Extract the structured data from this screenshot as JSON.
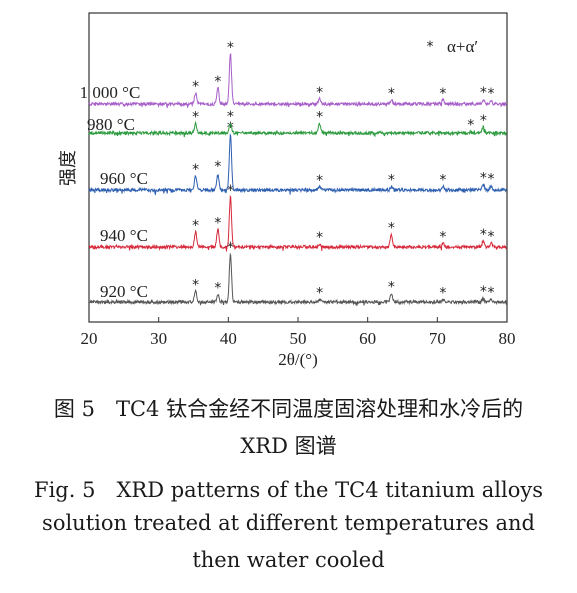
{
  "chart_data": {
    "type": "line",
    "xlabel": "2θ/(°)",
    "ylabel": "强度",
    "xlim": [
      20,
      80
    ],
    "xticks": [
      20,
      30,
      40,
      50,
      60,
      70,
      80
    ],
    "legend": {
      "symbol": "*",
      "label": "α+α′",
      "placement": "top-right"
    },
    "grid": false,
    "series": [
      {
        "name": "920 °C",
        "color": "#555555",
        "peaks": [
          {
            "x": 35.3,
            "h": 0.22,
            "star": true
          },
          {
            "x": 38.5,
            "h": 0.16,
            "star": true
          },
          {
            "x": 40.3,
            "h": 1.0,
            "star": true
          },
          {
            "x": 53.1,
            "h": 0.05,
            "star": true
          },
          {
            "x": 63.4,
            "h": 0.18,
            "star": true
          },
          {
            "x": 70.8,
            "h": 0.05,
            "star": true
          },
          {
            "x": 76.6,
            "h": 0.08,
            "star": true
          },
          {
            "x": 77.7,
            "h": 0.06,
            "star": true
          }
        ]
      },
      {
        "name": "940 °C",
        "color": "#d62a3c",
        "peaks": [
          {
            "x": 35.3,
            "h": 0.3,
            "star": true
          },
          {
            "x": 38.5,
            "h": 0.35,
            "star": true
          },
          {
            "x": 40.3,
            "h": 1.0,
            "star": true
          },
          {
            "x": 53.1,
            "h": 0.06,
            "star": true
          },
          {
            "x": 63.4,
            "h": 0.25,
            "star": true
          },
          {
            "x": 70.8,
            "h": 0.07,
            "star": true
          },
          {
            "x": 76.6,
            "h": 0.12,
            "star": true
          },
          {
            "x": 77.7,
            "h": 0.08,
            "star": true
          }
        ]
      },
      {
        "name": "960 °C",
        "color": "#2e5fb0",
        "peaks": [
          {
            "x": 35.3,
            "h": 0.25,
            "star": true
          },
          {
            "x": 38.5,
            "h": 0.3,
            "star": true
          },
          {
            "x": 40.3,
            "h": 1.0,
            "star": true
          },
          {
            "x": 53.1,
            "h": 0.05,
            "star": true
          },
          {
            "x": 63.4,
            "h": 0.06,
            "star": true
          },
          {
            "x": 70.8,
            "h": 0.06,
            "star": true
          },
          {
            "x": 76.6,
            "h": 0.1,
            "star": true
          },
          {
            "x": 77.7,
            "h": 0.08,
            "star": true
          }
        ]
      },
      {
        "name": "980 °C",
        "color": "#2c9a3e",
        "peaks": [
          {
            "x": 35.3,
            "h": 0.55,
            "star": true
          },
          {
            "x": 40.3,
            "h": 0.6,
            "star": true
          },
          {
            "x": 53.1,
            "h": 0.55,
            "star": true
          },
          {
            "x": 74.8,
            "h": 0.08,
            "star": true
          },
          {
            "x": 76.6,
            "h": 0.35,
            "star": true
          }
        ]
      },
      {
        "name": "1 000 °C",
        "color": "#a65fc8",
        "peaks": [
          {
            "x": 35.3,
            "h": 0.22,
            "star": true
          },
          {
            "x": 38.5,
            "h": 0.32,
            "star": true
          },
          {
            "x": 40.3,
            "h": 1.0,
            "star": true
          },
          {
            "x": 53.1,
            "h": 0.1,
            "star": true
          },
          {
            "x": 63.4,
            "h": 0.08,
            "star": true
          },
          {
            "x": 70.8,
            "h": 0.08,
            "star": true
          },
          {
            "x": 76.6,
            "h": 0.1,
            "star": true
          },
          {
            "x": 77.7,
            "h": 0.08,
            "star": true
          }
        ]
      }
    ]
  },
  "caption": {
    "cn_line1": "图 5　TC4 钛合金经不同温度固溶处理和水冷后的",
    "cn_line2": "XRD 图谱",
    "en_line1": "Fig. 5　XRD patterns of the TC4 titanium alloys",
    "en_line2": "solution treated at different temperatures and",
    "en_line3": "then water cooled"
  }
}
